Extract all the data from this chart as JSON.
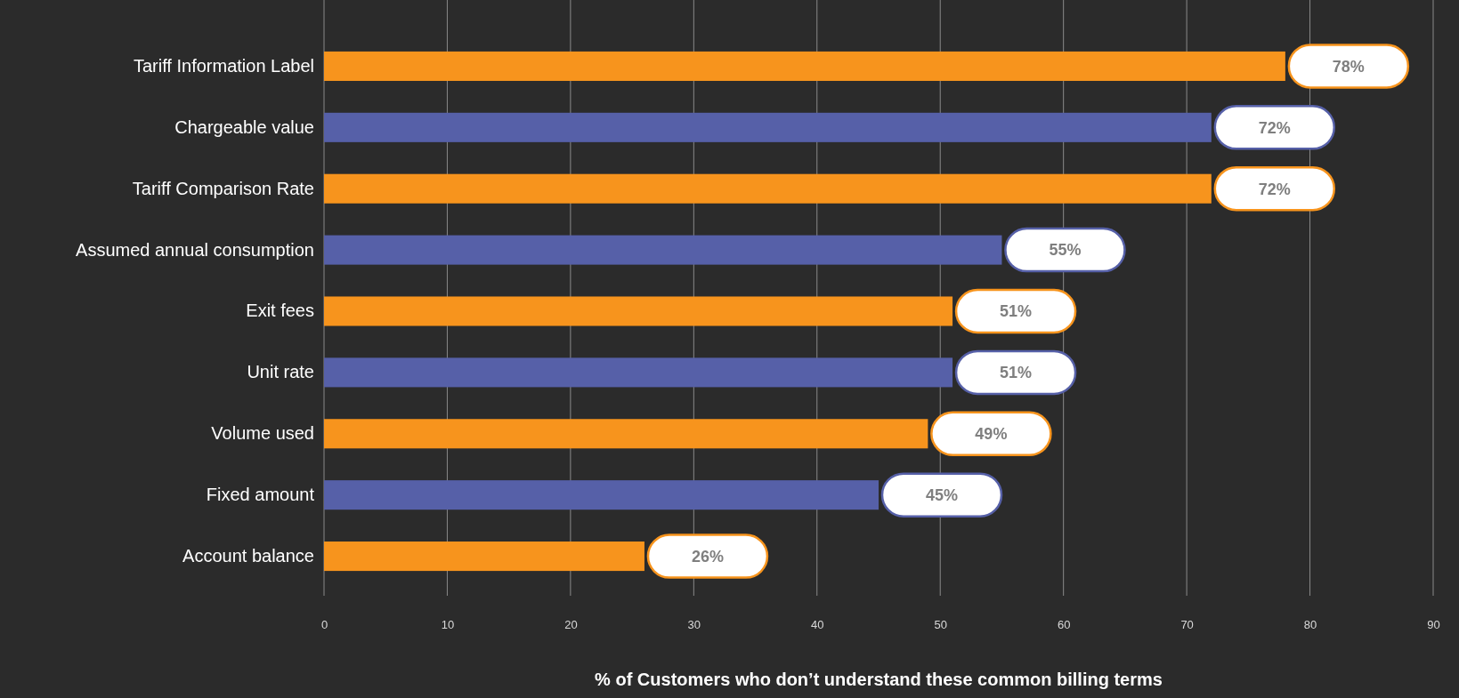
{
  "chart_data": {
    "type": "bar",
    "orientation": "horizontal",
    "categories": [
      "Tariff Information Label",
      "Chargeable value",
      "Tariff Comparison Rate",
      "Assumed annual consumption",
      "Exit fees",
      "Unit rate",
      "Volume used",
      "Fixed amount",
      "Account balance"
    ],
    "values": [
      78,
      72,
      72,
      55,
      51,
      51,
      49,
      45,
      26
    ],
    "colors": [
      "#f7941d",
      "#5660a8",
      "#f7941d",
      "#5660a8",
      "#f7941d",
      "#5660a8",
      "#f7941d",
      "#5660a8",
      "#f7941d"
    ],
    "value_labels": [
      "78%",
      "72%",
      "72%",
      "55%",
      "51%",
      "51%",
      "49%",
      "45%",
      "26%"
    ],
    "xlim": [
      0,
      90
    ],
    "xticks": [
      0,
      10,
      20,
      30,
      40,
      50,
      60,
      70,
      80,
      90
    ],
    "grid": "x",
    "xlabel": "% of Customers who don’t understand these common billing terms"
  }
}
